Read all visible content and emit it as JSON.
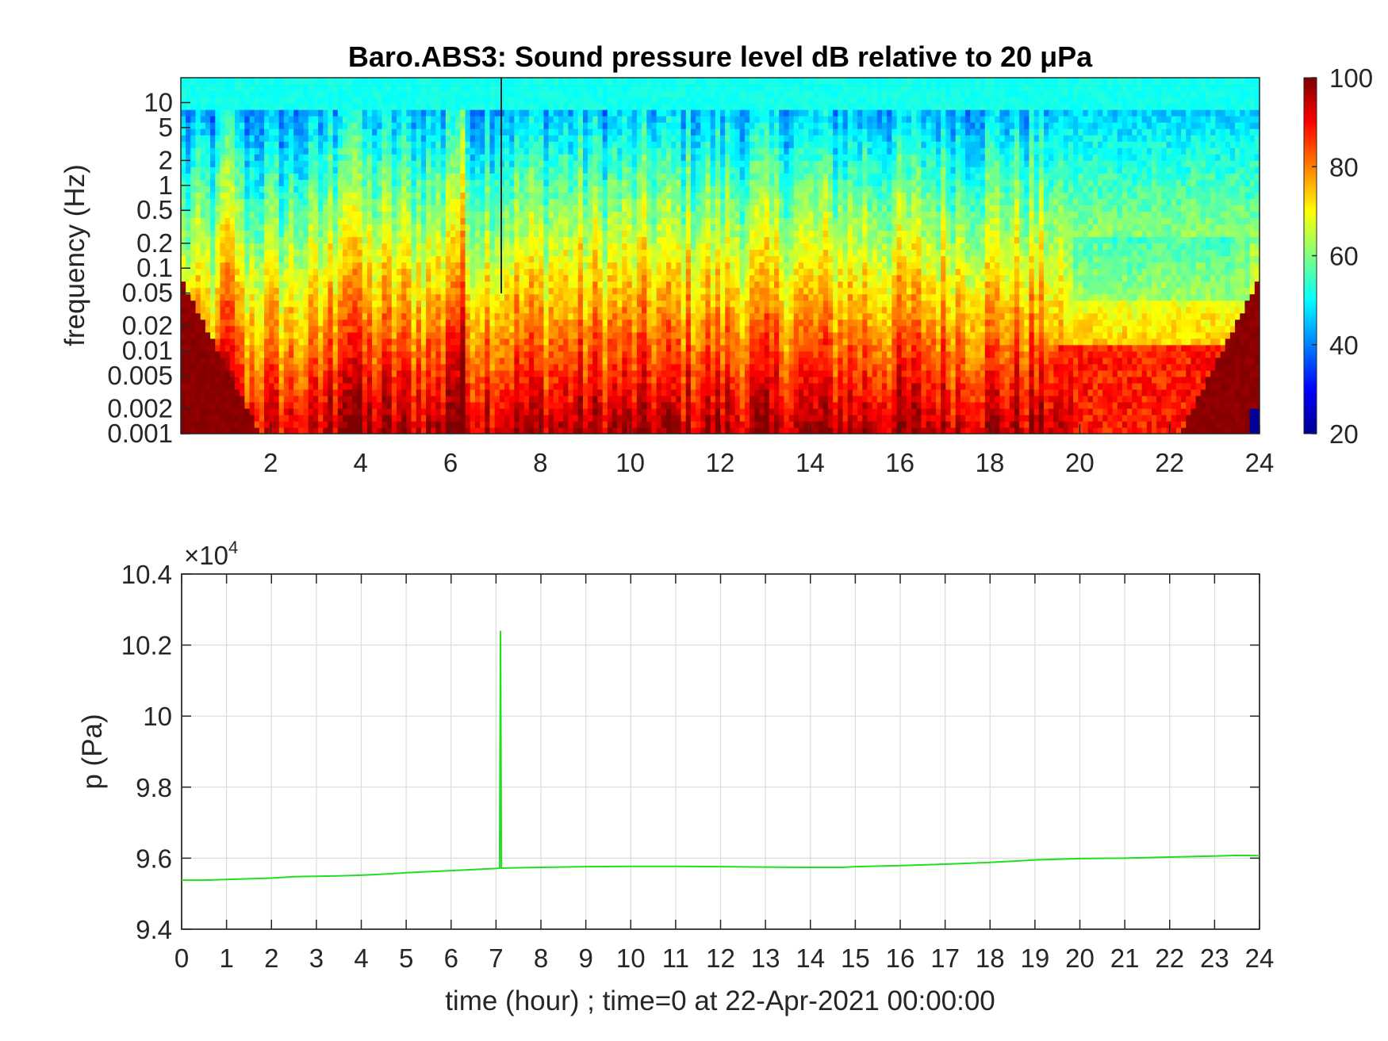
{
  "chart_data": [
    {
      "type": "heatmap",
      "title": "Baro.ABS3: Sound pressure level dB relative to 20 μPa",
      "ylabel": "frequency (Hz)",
      "xlabel": "",
      "x_ticks": [
        "2",
        "4",
        "6",
        "8",
        "10",
        "12",
        "14",
        "16",
        "18",
        "20",
        "22",
        "24"
      ],
      "y_ticks": [
        "10",
        "5",
        "2",
        "1",
        "0.5",
        "0.2",
        "0.1",
        "0.05",
        "0.02",
        "0.01",
        "0.005",
        "0.002",
        "0.001"
      ],
      "y_scale": "log",
      "xlim": [
        0,
        24
      ],
      "ylim": [
        0.001,
        20
      ],
      "colormap": "jet",
      "colorbar": {
        "ticks": [
          "100",
          "80",
          "60",
          "40",
          "20"
        ],
        "range": [
          20,
          100
        ]
      },
      "event_marker_hour": 7.1
    },
    {
      "type": "line",
      "xlabel": "time (hour) ; time=0 at 22-Apr-2021 00:00:00",
      "ylabel": "p (Pa)",
      "y_exponent_label": "×10",
      "y_exponent": "4",
      "x_ticks": [
        "0",
        "1",
        "2",
        "3",
        "4",
        "5",
        "6",
        "7",
        "8",
        "9",
        "10",
        "11",
        "12",
        "13",
        "14",
        "15",
        "16",
        "17",
        "18",
        "19",
        "20",
        "21",
        "22",
        "23",
        "24"
      ],
      "y_ticks": [
        "10.4",
        "10.2",
        "10",
        "9.8",
        "9.6",
        "9.4"
      ],
      "xlim": [
        0,
        24
      ],
      "ylim": [
        94000,
        104000
      ],
      "grid": true,
      "line_color": "#22dd22",
      "series": [
        {
          "x": [
            0,
            0.5,
            1,
            1.5,
            2,
            2.5,
            3,
            3.5,
            4,
            4.5,
            5,
            5.5,
            6,
            6.5,
            7,
            7.08,
            7.1,
            7.12,
            7.5,
            8,
            9,
            10,
            11,
            12,
            13,
            14,
            14.7,
            15,
            16,
            17,
            18,
            19,
            20,
            21,
            22,
            23,
            23.5,
            24
          ],
          "y": [
            95380,
            95380,
            95400,
            95420,
            95440,
            95480,
            95490,
            95500,
            95520,
            95550,
            95590,
            95620,
            95650,
            95680,
            95710,
            95720,
            102400,
            95720,
            95730,
            95740,
            95760,
            95770,
            95770,
            95760,
            95750,
            95740,
            95740,
            95760,
            95790,
            95830,
            95880,
            95950,
            95990,
            96000,
            96030,
            96060,
            96080,
            96070
          ]
        }
      ]
    }
  ]
}
